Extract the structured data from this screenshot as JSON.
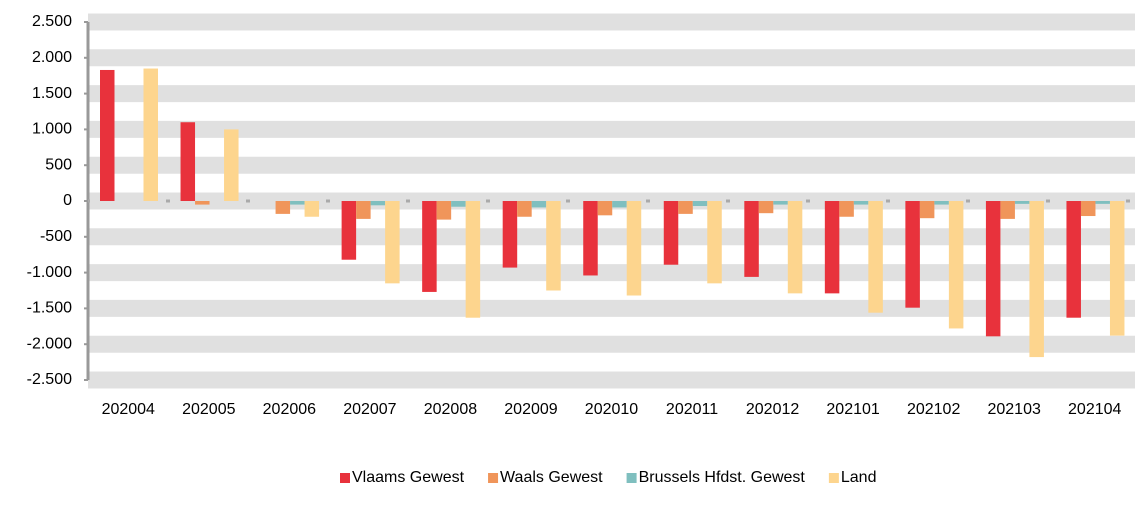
{
  "chart_data": {
    "type": "bar",
    "categories": [
      "202004",
      "202005",
      "202006",
      "202007",
      "202008",
      "202009",
      "202010",
      "202011",
      "202012",
      "202101",
      "202102",
      "202103",
      "202104"
    ],
    "series": [
      {
        "name": "Vlaams Gewest",
        "color": "#e8323c",
        "values": [
          1830,
          1100,
          0,
          -820,
          -1270,
          -930,
          -1040,
          -890,
          -1060,
          -1290,
          -1490,
          -1890,
          -1630
        ]
      },
      {
        "name": "Waals Gewest",
        "color": "#f0955a",
        "values": [
          0,
          -50,
          -180,
          -250,
          -260,
          -220,
          -200,
          -180,
          -170,
          -220,
          -240,
          -250,
          -210
        ]
      },
      {
        "name": "Brussels Hfdst. Gewest",
        "color": "#7fbfbf",
        "values": [
          0,
          0,
          -50,
          -60,
          -80,
          -90,
          -90,
          -70,
          -50,
          -50,
          -50,
          -40,
          -40
        ]
      },
      {
        "name": "Land",
        "color": "#fdd58e",
        "values": [
          1850,
          1000,
          -220,
          -1150,
          -1630,
          -1250,
          -1320,
          -1150,
          -1290,
          -1560,
          -1780,
          -2180,
          -1880
        ]
      }
    ],
    "ylim": [
      -2500,
      2500
    ],
    "yticks": [
      {
        "value": 2500,
        "label": "2.500"
      },
      {
        "value": 2000,
        "label": "2.000"
      },
      {
        "value": 1500,
        "label": "1.500"
      },
      {
        "value": 1000,
        "label": "1.000"
      },
      500,
      0,
      -500,
      {
        "value": -1000,
        "label": "-1.000"
      },
      {
        "value": -1500,
        "label": "-1.500"
      },
      {
        "value": -2000,
        "label": "-2.000"
      },
      {
        "value": -2500,
        "label": "-2.500"
      }
    ],
    "grid": true,
    "legend": "bottom"
  }
}
